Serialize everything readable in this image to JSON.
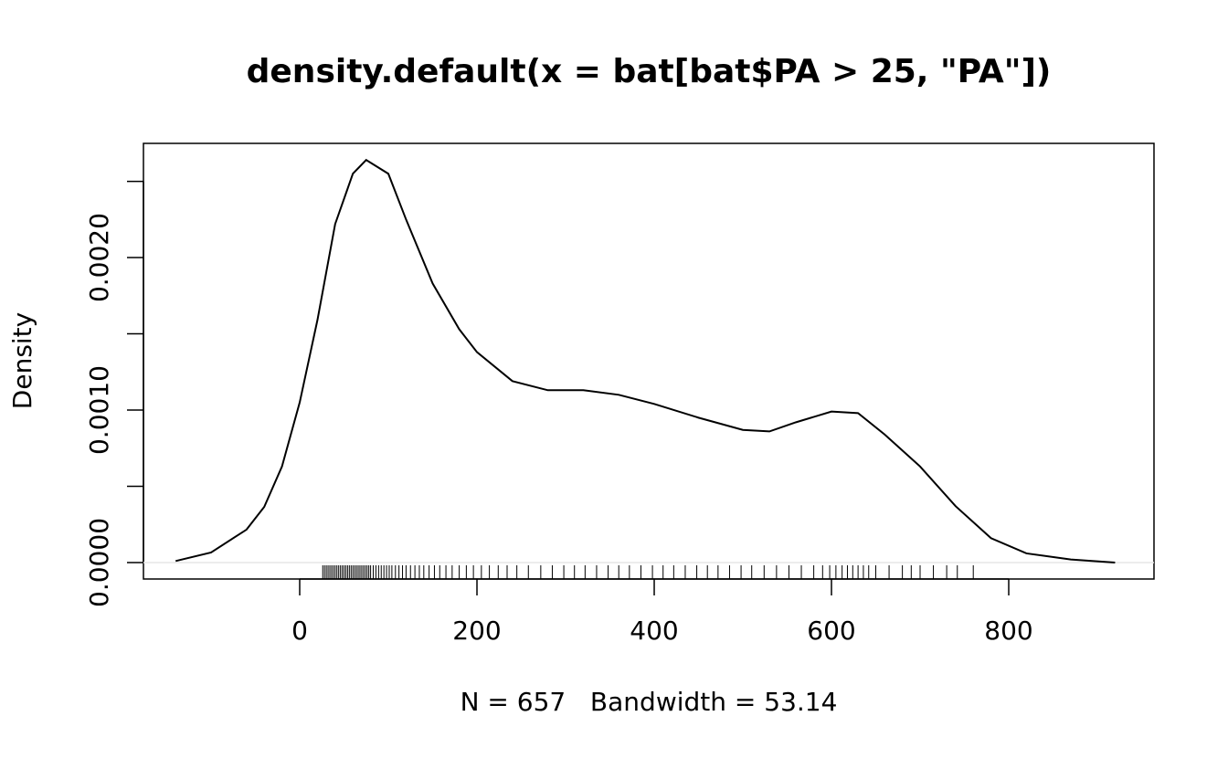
{
  "chart_data": {
    "type": "density",
    "title": "density.default(x = bat[bat$PA > 25, \"PA\"])",
    "xlabel": "N = 657   Bandwidth = 53.14",
    "ylabel": "Density",
    "xlim": [
      -176.3,
      963.9
    ],
    "ylim": [
      -0.000108,
      0.002749
    ],
    "xticks": [
      0,
      200,
      400,
      600,
      800
    ],
    "yticks": [
      {
        "value": 0,
        "label": "0.0000"
      },
      {
        "value": 0.0005,
        "label": null
      },
      {
        "value": 0.001,
        "label": "0.0010"
      },
      {
        "value": 0.0015,
        "label": null
      },
      {
        "value": 0.002,
        "label": "0.0020"
      },
      {
        "value": 0.0025,
        "label": null
      }
    ],
    "color": "#000000",
    "x": [
      -140,
      -100,
      -60,
      -40,
      -20,
      0,
      20,
      40,
      60,
      75,
      100,
      120,
      150,
      180,
      200,
      240,
      280,
      320,
      360,
      400,
      450,
      500,
      530,
      560,
      600,
      630,
      660,
      700,
      740,
      780,
      820,
      870,
      920
    ],
    "values": [
      1e-05,
      6.6e-05,
      0.000216,
      0.000365,
      0.00063,
      0.00105,
      0.00159,
      0.00222,
      0.00255,
      0.00264,
      0.00255,
      0.00225,
      0.00183,
      0.00153,
      0.00138,
      0.00119,
      0.00113,
      0.00113,
      0.0011,
      0.00104,
      0.00095,
      0.00087,
      0.00086,
      0.00092,
      0.00099,
      0.00098,
      0.00084,
      0.00063,
      0.00037,
      0.00016,
      6e-05,
      2e-05,
      0
    ],
    "rug": [
      26,
      28,
      30,
      32,
      34,
      36,
      38,
      40,
      42,
      44,
      46,
      48,
      50,
      52,
      54,
      56,
      58,
      60,
      62,
      64,
      66,
      68,
      70,
      72,
      74,
      76,
      78,
      80,
      83,
      86,
      89,
      92,
      95,
      98,
      101,
      104,
      108,
      112,
      116,
      120,
      125,
      130,
      135,
      140,
      146,
      152,
      158,
      165,
      172,
      180,
      188,
      196,
      205,
      214,
      224,
      234,
      245,
      258,
      272,
      285,
      298,
      310,
      322,
      335,
      348,
      360,
      372,
      385,
      398,
      410,
      422,
      435,
      448,
      460,
      472,
      485,
      498,
      510,
      524,
      538,
      552,
      566,
      580,
      590,
      598,
      605,
      612,
      618,
      624,
      630,
      636,
      642,
      650,
      665,
      680,
      690,
      700,
      715,
      730,
      742,
      760
    ]
  }
}
